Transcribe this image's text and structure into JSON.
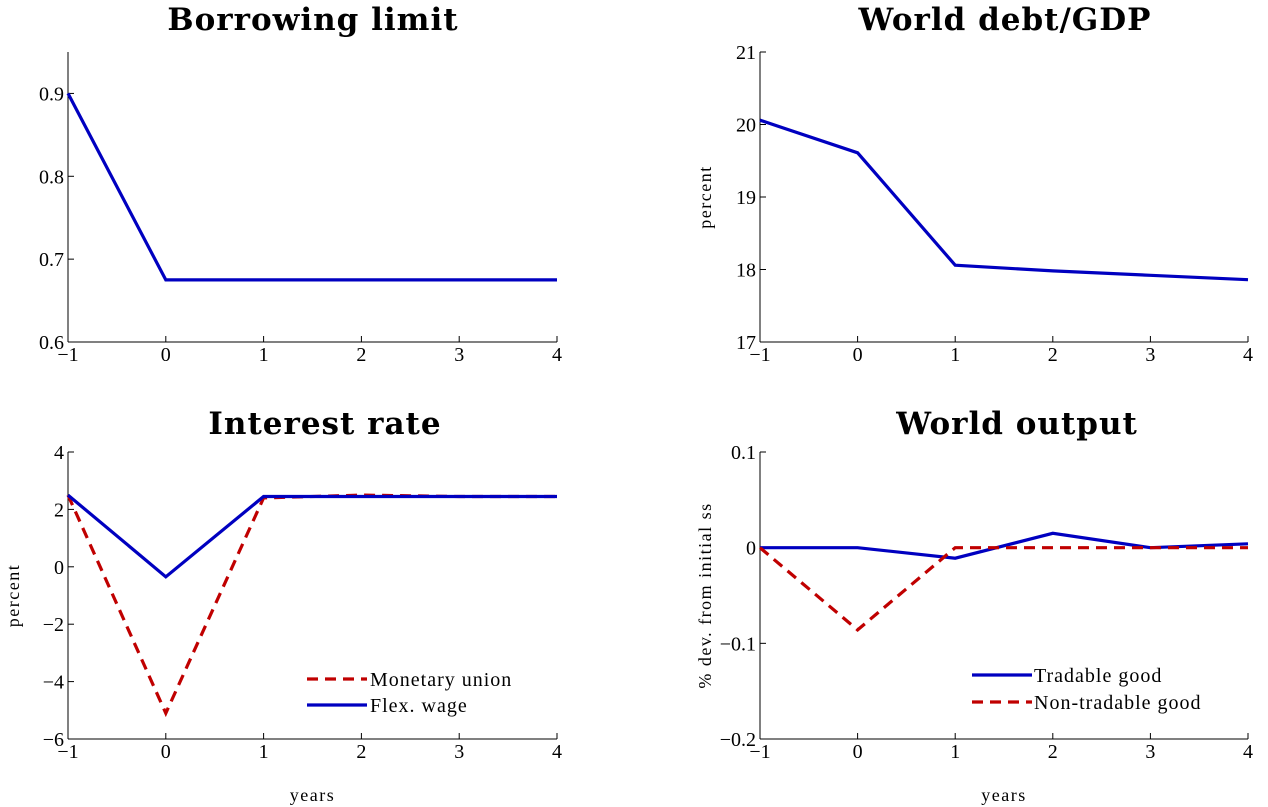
{
  "chart_data": [
    {
      "type": "line",
      "title": "Borrowing limit",
      "xlabel": "",
      "ylabel": "",
      "xlim": [
        -1,
        4
      ],
      "ylim": [
        0.6,
        0.95
      ],
      "xticks": [
        -1,
        0,
        1,
        2,
        3,
        4
      ],
      "xtick_labels": [
        "−1",
        "0",
        "1",
        "2",
        "3",
        "4"
      ],
      "yticks": [
        0.6,
        0.7,
        0.8,
        0.9
      ],
      "ytick_labels": [
        "0.6",
        "0.7",
        "0.8",
        "0.9"
      ],
      "series": [
        {
          "x": [
            -1,
            0,
            1,
            2,
            3,
            4
          ],
          "y": [
            0.9,
            0.675,
            0.675,
            0.675,
            0.675,
            0.675
          ],
          "color": "#0000c0",
          "dash": "solid"
        }
      ]
    },
    {
      "type": "line",
      "title": "World debt/GDP",
      "xlabel": "",
      "ylabel": "percent",
      "xlim": [
        -1,
        4
      ],
      "ylim": [
        17,
        21
      ],
      "xticks": [
        -1,
        0,
        1,
        2,
        3,
        4
      ],
      "xtick_labels": [
        "−1",
        "0",
        "1",
        "2",
        "3",
        "4"
      ],
      "yticks": [
        17,
        18,
        19,
        20,
        21
      ],
      "ytick_labels": [
        "17",
        "18",
        "19",
        "20",
        "21"
      ],
      "series": [
        {
          "x": [
            -1,
            0,
            1,
            2,
            3,
            4
          ],
          "y": [
            20.06,
            19.61,
            18.06,
            17.98,
            17.92,
            17.86
          ],
          "color": "#0000c0",
          "dash": "solid"
        }
      ]
    },
    {
      "type": "line",
      "title": "Interest rate",
      "xlabel": "years",
      "ylabel": "percent",
      "xlim": [
        -1,
        4
      ],
      "ylim": [
        -6,
        4
      ],
      "xticks": [
        -1,
        0,
        1,
        2,
        3,
        4
      ],
      "xtick_labels": [
        "−1",
        "0",
        "1",
        "2",
        "3",
        "4"
      ],
      "yticks": [
        -6,
        -4,
        -2,
        0,
        2,
        4
      ],
      "ytick_labels": [
        "−6",
        "−4",
        "−2",
        "0",
        "2",
        "4"
      ],
      "legend_position": "bottom-right",
      "series": [
        {
          "name": "Monetary union",
          "x": [
            -1,
            0,
            1,
            2,
            3,
            4
          ],
          "y": [
            2.5,
            -5.1,
            2.4,
            2.5,
            2.45,
            2.45
          ],
          "color": "#c00000",
          "dash": "dashed"
        },
        {
          "name": "Flex. wage",
          "x": [
            -1,
            0,
            1,
            2,
            3,
            4
          ],
          "y": [
            2.5,
            -0.35,
            2.45,
            2.45,
            2.45,
            2.45
          ],
          "color": "#0000c0",
          "dash": "solid"
        }
      ]
    },
    {
      "type": "line",
      "title": "World output",
      "xlabel": "years",
      "ylabel": "% dev. from initial ss",
      "xlim": [
        -1,
        4
      ],
      "ylim": [
        -0.2,
        0.1
      ],
      "xticks": [
        -1,
        0,
        1,
        2,
        3,
        4
      ],
      "xtick_labels": [
        "−1",
        "0",
        "1",
        "2",
        "3",
        "4"
      ],
      "yticks": [
        -0.2,
        -0.1,
        0,
        0.1
      ],
      "ytick_labels": [
        "−0.2",
        "−0.1",
        "0",
        "0.1"
      ],
      "legend_position": "bottom-right",
      "series": [
        {
          "name": "Tradable good",
          "x": [
            -1,
            0,
            1,
            2,
            3,
            4
          ],
          "y": [
            0,
            0,
            -0.011,
            0.015,
            0,
            0.004
          ],
          "color": "#0000c0",
          "dash": "solid"
        },
        {
          "name": "Non-tradable good",
          "x": [
            -1,
            0,
            1,
            2,
            3,
            4
          ],
          "y": [
            0,
            -0.086,
            0,
            0,
            0,
            0
          ],
          "color": "#c00000",
          "dash": "dashed"
        }
      ]
    }
  ]
}
